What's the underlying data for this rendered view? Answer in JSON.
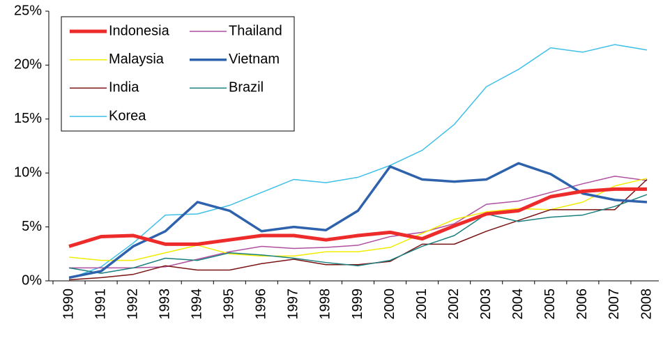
{
  "chart_data": {
    "type": "line",
    "categories": [
      "1990",
      "1991",
      "1992",
      "1993",
      "1994",
      "1995",
      "1996",
      "1997",
      "1998",
      "1999",
      "2000",
      "2001",
      "2002",
      "2003",
      "2004",
      "2005",
      "2006",
      "2007",
      "2008"
    ],
    "series": [
      {
        "name": "Indonesia",
        "color": "#ee2b2b",
        "width": 5,
        "values": [
          3.2,
          4.1,
          4.2,
          3.4,
          3.4,
          3.8,
          4.2,
          4.2,
          3.8,
          4.2,
          4.5,
          3.9,
          5.1,
          6.2,
          6.5,
          7.8,
          8.3,
          8.5,
          8.5
        ]
      },
      {
        "name": "Thailand",
        "color": "#b04fa0",
        "width": 1.5,
        "values": [
          1.2,
          1.2,
          1.2,
          1.3,
          2.0,
          2.7,
          3.2,
          3.0,
          3.1,
          3.3,
          4.1,
          4.5,
          5.3,
          7.1,
          7.4,
          8.2,
          9.0,
          9.7,
          9.3
        ]
      },
      {
        "name": "Malaysia",
        "color": "#f2ec00",
        "width": 1.5,
        "values": [
          2.2,
          1.9,
          1.9,
          2.6,
          3.3,
          2.5,
          2.3,
          2.3,
          2.7,
          2.7,
          3.1,
          4.4,
          5.7,
          6.4,
          6.7,
          6.6,
          7.3,
          8.8,
          9.5
        ]
      },
      {
        "name": "Vietnam",
        "color": "#2e62ac",
        "width": 3.5,
        "values": [
          0.3,
          0.9,
          3.2,
          4.6,
          7.3,
          6.5,
          4.6,
          5.0,
          4.7,
          6.5,
          10.6,
          9.4,
          9.2,
          9.4,
          10.9,
          9.9,
          8.1,
          7.5,
          7.3
        ]
      },
      {
        "name": "India",
        "color": "#7a1212",
        "width": 1.5,
        "values": [
          0.1,
          0.3,
          0.6,
          1.4,
          1.0,
          1.0,
          1.6,
          2.0,
          1.5,
          1.5,
          1.8,
          3.4,
          3.4,
          4.6,
          5.6,
          6.6,
          6.6,
          6.6,
          9.4
        ]
      },
      {
        "name": "Brazil",
        "color": "#1a7f7f",
        "width": 1.5,
        "values": [
          1.2,
          0.7,
          1.2,
          2.1,
          1.9,
          2.6,
          2.4,
          2.1,
          1.7,
          1.4,
          1.9,
          3.2,
          4.2,
          6.2,
          5.5,
          5.9,
          6.1,
          6.9,
          8.0
        ]
      },
      {
        "name": "Korea",
        "color": "#3fc0e8",
        "width": 1.5,
        "values": [
          0.2,
          1.3,
          3.5,
          6.1,
          6.2,
          7.0,
          8.2,
          9.4,
          9.1,
          9.6,
          10.7,
          12.1,
          14.5,
          18.0,
          19.6,
          21.6,
          21.2,
          21.9,
          21.4
        ]
      }
    ],
    "ylim": [
      0,
      25
    ],
    "yticks": [
      {
        "value": 0,
        "label": "0%"
      },
      {
        "value": 5,
        "label": "5%"
      },
      {
        "value": 10,
        "label": "10%"
      },
      {
        "value": 15,
        "label": "15%"
      },
      {
        "value": 20,
        "label": "20%"
      },
      {
        "value": 25,
        "label": "25%"
      }
    ],
    "grid": false,
    "legend": "upper left"
  }
}
